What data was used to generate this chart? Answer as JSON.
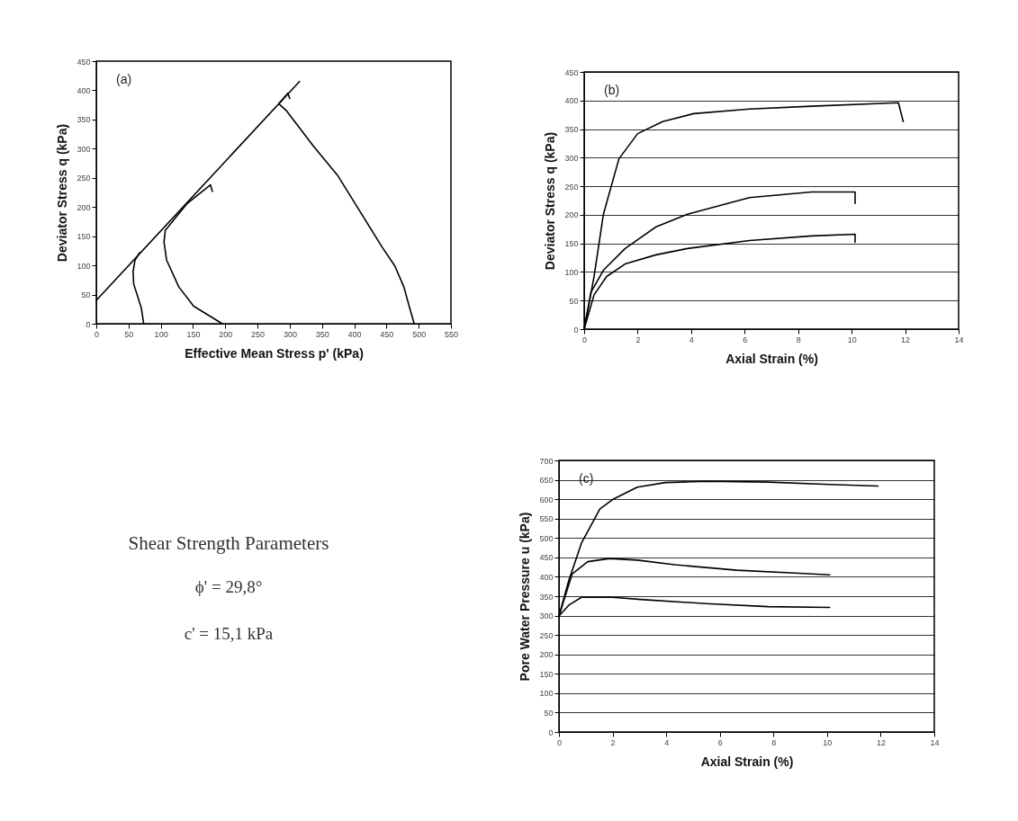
{
  "chart_data": [
    {
      "type": "line",
      "xlabel": "Effective Mean Stress p' (kPa)",
      "ylabel": "Deviator Stress q (kPa)",
      "annotations": [
        "(a)"
      ],
      "xlim": [
        0,
        550
      ],
      "xticks": [
        0,
        50,
        100,
        150,
        200,
        250,
        300,
        350,
        400,
        450,
        500,
        550
      ],
      "ylim": [
        0,
        450
      ],
      "yticks": [
        0,
        50,
        100,
        150,
        200,
        250,
        300,
        350,
        400,
        450
      ],
      "grid": false,
      "series": [
        {
          "color": "#000000",
          "x": [
            0,
            315
          ],
          "values": [
            40,
            415
          ]
        },
        {
          "color": "#000000",
          "x": [
            73.5,
            69.8,
            58,
            57,
            60,
            67.4
          ],
          "values": [
            0,
            27,
            68,
            89,
            109,
            122
          ]
        },
        {
          "color": "#000000",
          "x": [
            195.4,
            151,
            128,
            109,
            105,
            107,
            140,
            177,
            180
          ],
          "values": [
            0,
            30,
            63,
            109,
            140,
            160,
            205,
            238,
            227
          ]
        },
        {
          "color": "#000000",
          "x": [
            493,
            486,
            477,
            463,
            444,
            407,
            375,
            337,
            295,
            283,
            297,
            300
          ],
          "values": [
            0,
            27,
            63,
            99,
            130,
            196,
            253,
            304,
            365,
            377,
            395,
            386
          ]
        }
      ]
    },
    {
      "type": "line",
      "xlabel": "Axial Strain (%)",
      "ylabel": "Deviator Stress q (kPa)",
      "annotations": [
        "(b)"
      ],
      "xlim": [
        0,
        14
      ],
      "xticks": [
        0,
        2,
        4,
        6,
        8,
        10,
        12,
        14
      ],
      "ylim": [
        0,
        450
      ],
      "yticks": [
        0,
        50,
        100,
        150,
        200,
        250,
        300,
        350,
        400,
        450
      ],
      "grid": "y",
      "series": [
        {
          "color": "#000000",
          "x": [
            0,
            0.37,
            0.72,
            1.3,
            2.0,
            2.93,
            4.09,
            6.18,
            8.5,
            11.75,
            11.93
          ],
          "values": [
            0,
            92,
            201,
            298,
            342,
            363,
            377,
            385,
            390,
            396,
            363
          ]
        },
        {
          "color": "#000000",
          "x": [
            0,
            0.26,
            0.72,
            1.53,
            2.69,
            3.86,
            6.18,
            8.5,
            10.13,
            10.13
          ],
          "values": [
            0,
            65,
            103,
            141,
            179,
            201,
            230,
            240,
            240,
            220
          ]
        },
        {
          "color": "#000000",
          "x": [
            0,
            0.37,
            0.84,
            1.53,
            2.69,
            3.86,
            6.18,
            8.5,
            10.13,
            10.13
          ],
          "values": [
            0,
            60,
            92,
            114,
            130,
            141,
            155,
            163,
            166,
            152
          ]
        }
      ]
    },
    {
      "type": "other",
      "title": "Shear Strength Parameters",
      "annotations": [
        "ϕ' = 29,8°",
        "c' = 15,1 kPa"
      ]
    },
    {
      "type": "line",
      "xlabel": "Axial Strain (%)",
      "ylabel": "Pore Water Pressure u (kPa)",
      "annotations": [
        "(c)"
      ],
      "xlim": [
        0,
        14
      ],
      "xticks": [
        0,
        2,
        4,
        6,
        8,
        10,
        12,
        14
      ],
      "ylim": [
        0,
        700
      ],
      "yticks": [
        0,
        50,
        100,
        150,
        200,
        250,
        300,
        350,
        400,
        450,
        500,
        550,
        600,
        650,
        700
      ],
      "grid": "y",
      "series": [
        {
          "color": "#000000",
          "x": [
            0,
            0.37,
            0.84,
            1.53,
            2.0,
            2.92,
            3.97,
            5.48,
            7.8,
            10.1,
            11.9
          ],
          "values": [
            299,
            391,
            487,
            575,
            599,
            631,
            643,
            646,
            644,
            638,
            634
          ]
        },
        {
          "color": "#000000",
          "x": [
            0,
            0.49,
            1.07,
            1.88,
            2.92,
            4.32,
            6.64,
            8.96,
            10.1
          ],
          "values": [
            299,
            407,
            439,
            447,
            443,
            431,
            417,
            409,
            405
          ]
        },
        {
          "color": "#000000",
          "x": [
            0,
            0.37,
            0.84,
            2.0,
            3.16,
            5.48,
            7.8,
            10.1
          ],
          "values": [
            299,
            327,
            347,
            347,
            341,
            331,
            323,
            321
          ]
        }
      ]
    }
  ]
}
